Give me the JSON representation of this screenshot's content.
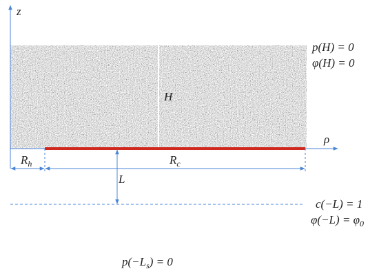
{
  "labels": [
    [
      {
        "text": "z"
      }
    ],
    [
      {
        "text": "p(H) = 0"
      }
    ],
    [
      {
        "text": "φ(H) = 0"
      }
    ],
    [
      {
        "text": "H"
      }
    ],
    [
      {
        "text": "ρ"
      }
    ],
    [
      {
        "text": "R"
      },
      {
        "sub": "h"
      }
    ],
    [
      {
        "text": "R"
      },
      {
        "sub": "c"
      }
    ],
    [
      {
        "text": "L"
      }
    ],
    [
      {
        "text": "c(−L) = 1"
      }
    ],
    [
      {
        "text": "φ(−L) = φ"
      },
      {
        "sub": "0"
      }
    ],
    [
      {
        "text": "p(−L"
      },
      {
        "sub": "s"
      },
      {
        "text": ") = 0"
      }
    ]
  ]
}
